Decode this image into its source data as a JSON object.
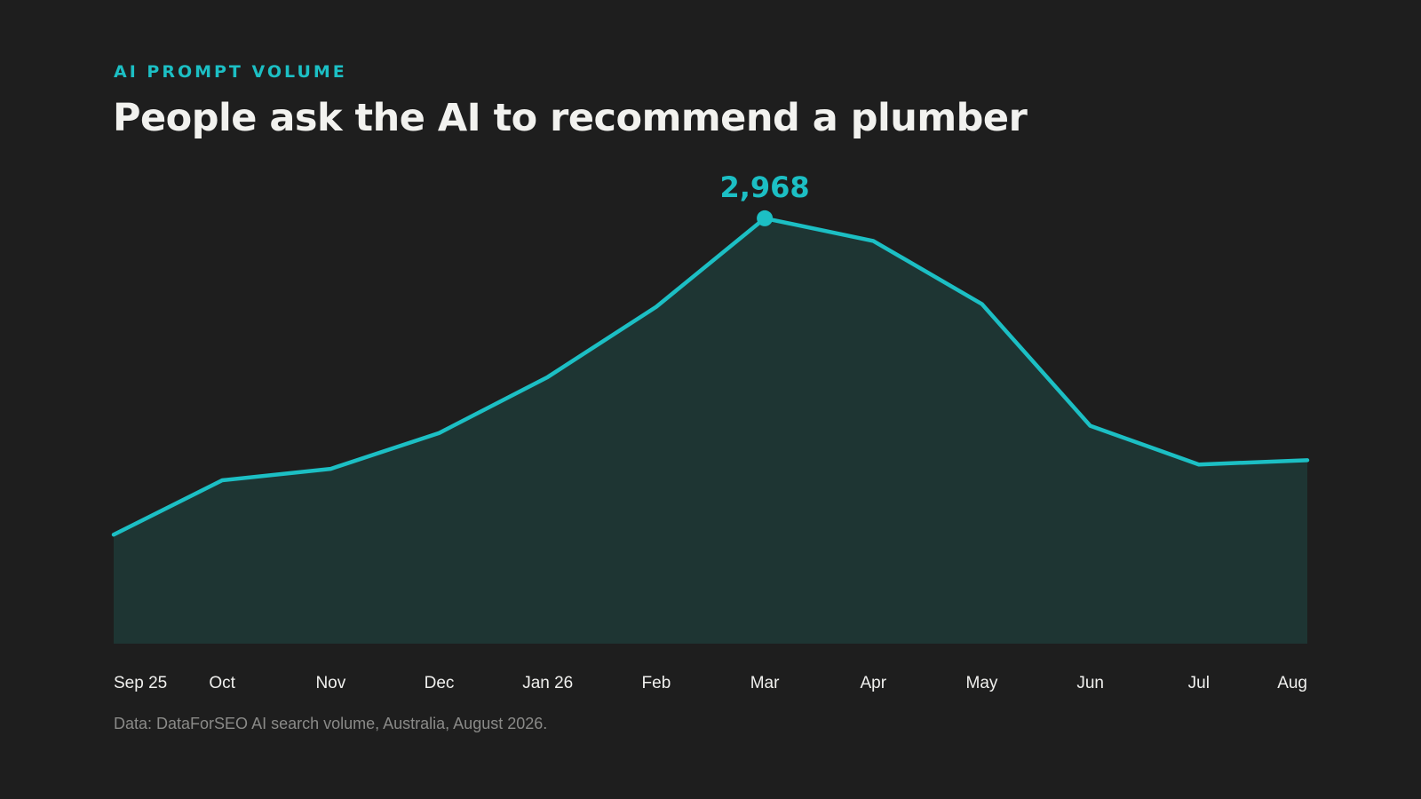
{
  "header": {
    "eyebrow": "AI PROMPT VOLUME",
    "title": "People ask the AI to recommend a plumber"
  },
  "footer": {
    "source": "Data: DataForSEO AI search volume, Australia, August 2026."
  },
  "colors": {
    "background": "#1e1e1e",
    "accent": "#1cbfc4",
    "area_fill": "#1e3533",
    "title_text": "#f2f2ef",
    "axis_text": "#f0f0ee",
    "source_text": "#8a8a88"
  },
  "chart_data": {
    "type": "area",
    "title": "People ask the AI to recommend a plumber",
    "categories": [
      "Sep 25",
      "Oct",
      "Nov",
      "Dec",
      "Jan 26",
      "Feb",
      "Mar",
      "Apr",
      "May",
      "Jun",
      "Jul",
      "Aug"
    ],
    "values": [
      760,
      1140,
      1220,
      1470,
      1860,
      2350,
      2968,
      2810,
      2370,
      1520,
      1250,
      1280
    ],
    "ylim": [
      0,
      3500
    ],
    "annotation": {
      "index": 6,
      "label": "2,968"
    },
    "grid": false,
    "legend": "none"
  }
}
